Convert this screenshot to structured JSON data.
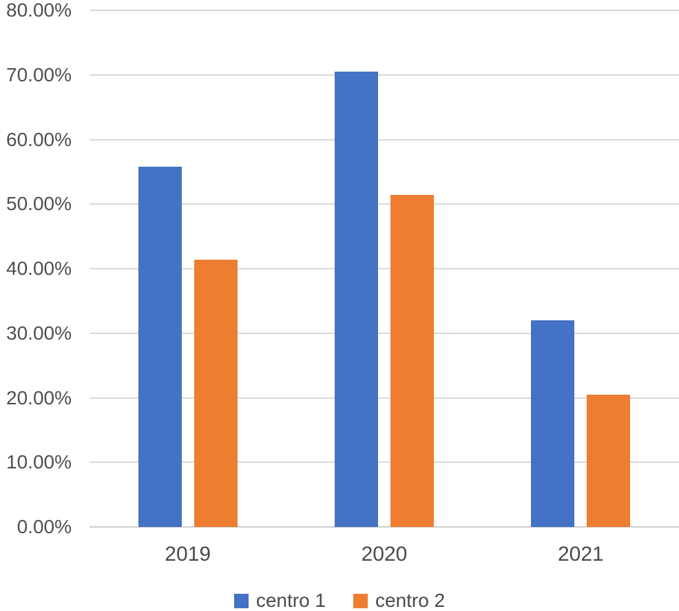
{
  "chart_data": {
    "type": "bar",
    "title": "",
    "xlabel": "",
    "ylabel": "",
    "categories": [
      "2019",
      "2020",
      "2021"
    ],
    "series": [
      {
        "name": "centro 1",
        "color": "#4472C4",
        "values": [
          55.8,
          70.5,
          32.0
        ]
      },
      {
        "name": "centro 2",
        "color": "#ED7D31",
        "values": [
          41.4,
          51.4,
          20.5
        ]
      }
    ],
    "ylim": [
      0,
      80
    ],
    "ytick_step": 10,
    "ytick_labels": [
      "0.00%",
      "10.00%",
      "20.00%",
      "30.00%",
      "40.00%",
      "50.00%",
      "60.00%",
      "70.00%",
      "80.00%"
    ],
    "grid": true,
    "legend_position": "bottom",
    "colors": {
      "gridline": "#d9d9d9",
      "axis_line": "#cfcfcf",
      "tick_text": "#4f4f4f",
      "background": "#ffffff"
    }
  }
}
